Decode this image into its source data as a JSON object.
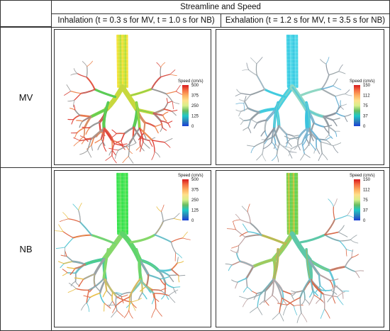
{
  "header": {
    "title": "Streamline and Speed",
    "col_inhalation": "Inhalation (t = 0.3 s for MV, t = 1.0 s for NB)",
    "col_exhalation": "Exhalation (t = 1.2 s for MV, t = 3.5 s for NB)"
  },
  "rows": [
    {
      "label": "MV"
    },
    {
      "label": "NB"
    }
  ],
  "panels": [
    {
      "legend_title": "Speed (cm/s)",
      "ticks": [
        "500",
        "375",
        "250",
        "125",
        "0"
      ],
      "scheme": "hot"
    },
    {
      "legend_title": "Speed (cm/s)",
      "ticks": [
        "150",
        "112",
        "75",
        "37",
        "0"
      ],
      "scheme": "cool"
    },
    {
      "legend_title": "Speed (cm/s)",
      "ticks": [
        "500",
        "375",
        "250",
        "125",
        "0"
      ],
      "scheme": "green"
    },
    {
      "legend_title": "Speed (cm/s)",
      "ticks": [
        "150",
        "112",
        "75",
        "37",
        "0"
      ],
      "scheme": "green2"
    }
  ],
  "colors": {
    "colormap": [
      "#d7191c",
      "#f46d43",
      "#fdae61",
      "#fee08b",
      "#d9ef8b",
      "#66bd63",
      "#1ec8c8",
      "#2b83ba",
      "#1a3fd6"
    ],
    "border": "#333333"
  }
}
